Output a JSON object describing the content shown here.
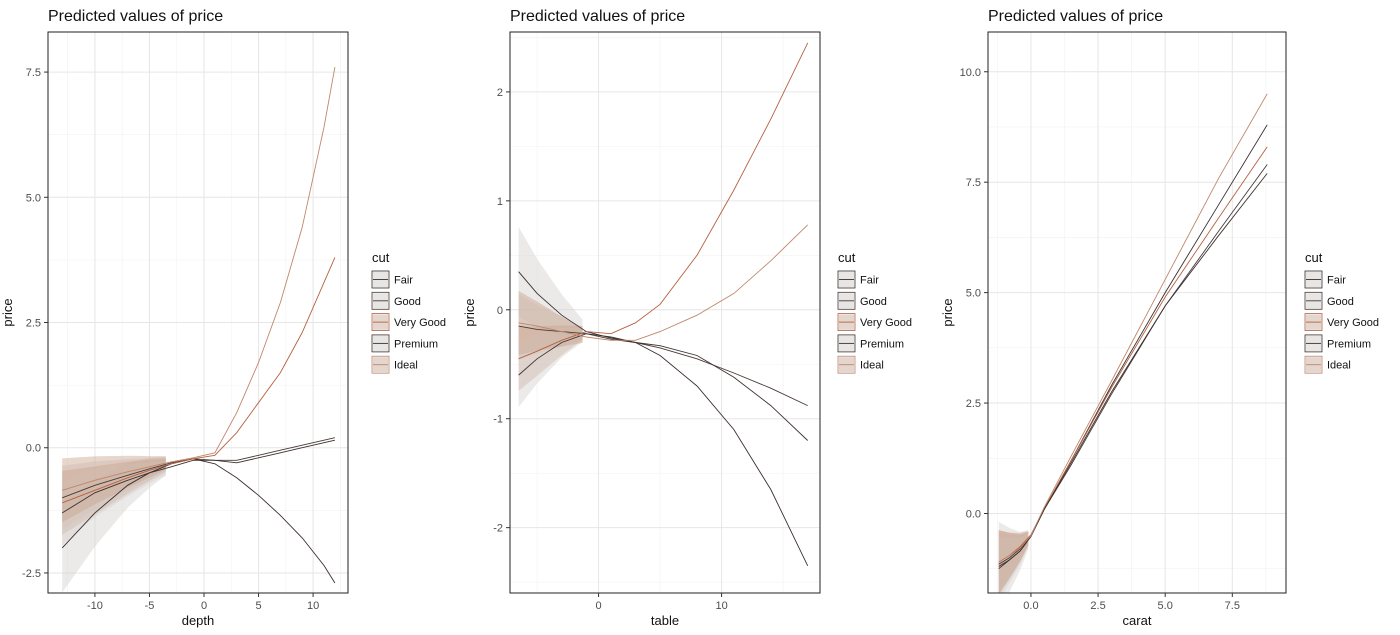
{
  "colors": {
    "Fair": "#3b2f2f",
    "Good": "#4a3a36",
    "Very Good": "#b5613e",
    "Premium": "#3d3232",
    "Ideal": "#c0866a",
    "band": "#c9a48d",
    "band_grey": "#d4d0cf"
  },
  "chart_data": [
    {
      "type": "line",
      "title": "Predicted values of price",
      "xlabel": "depth",
      "ylabel": "price",
      "xlim": [
        -14.3,
        13.2
      ],
      "ylim": [
        -2.9,
        8.3
      ],
      "xticks": [
        -10,
        -5,
        0,
        5,
        10
      ],
      "xtick_labels": [
        "-10",
        "-5",
        "0",
        "5",
        "10"
      ],
      "yticks": [
        -2.5,
        0,
        2.5,
        5,
        7.5
      ],
      "ytick_labels": [
        "-2.5",
        "0.0",
        "2.5",
        "5.0",
        "7.5"
      ],
      "legend_title": "cut",
      "legend_position": "right",
      "band_x_range": [
        -13,
        -3.5
      ],
      "series": [
        {
          "name": "Fair",
          "x": [
            -13,
            -10,
            -7,
            -5,
            -3,
            -1,
            1,
            3,
            5,
            7,
            9,
            11,
            12
          ],
          "y": [
            -2.0,
            -1.3,
            -0.75,
            -0.5,
            -0.32,
            -0.22,
            -0.32,
            -0.6,
            -0.95,
            -1.35,
            -1.8,
            -2.35,
            -2.7
          ]
        },
        {
          "name": "Good",
          "x": [
            -13,
            -10,
            -7,
            -5,
            -3,
            -1,
            1,
            3,
            5,
            7,
            9,
            11,
            12
          ],
          "y": [
            -1.0,
            -0.75,
            -0.55,
            -0.42,
            -0.3,
            -0.22,
            -0.25,
            -0.25,
            -0.15,
            -0.05,
            0.05,
            0.15,
            0.2
          ]
        },
        {
          "name": "Very Good",
          "x": [
            -13,
            -10,
            -7,
            -5,
            -3,
            -1,
            1,
            3,
            5,
            7,
            9,
            11,
            12
          ],
          "y": [
            -1.1,
            -0.85,
            -0.6,
            -0.45,
            -0.32,
            -0.22,
            -0.15,
            0.3,
            0.9,
            1.5,
            2.3,
            3.3,
            3.8
          ]
        },
        {
          "name": "Premium",
          "x": [
            -13,
            -10,
            -7,
            -5,
            -3,
            -1,
            1,
            3,
            5,
            7,
            9,
            11,
            12
          ],
          "y": [
            -1.3,
            -0.9,
            -0.65,
            -0.5,
            -0.38,
            -0.25,
            -0.25,
            -0.3,
            -0.2,
            -0.1,
            0.0,
            0.1,
            0.15
          ]
        },
        {
          "name": "Ideal",
          "x": [
            -13,
            -10,
            -7,
            -5,
            -3,
            -1,
            1,
            3,
            5,
            7,
            9,
            11,
            12
          ],
          "y": [
            -0.85,
            -0.65,
            -0.48,
            -0.38,
            -0.28,
            -0.2,
            -0.1,
            0.7,
            1.7,
            2.9,
            4.4,
            6.4,
            7.6
          ]
        }
      ]
    },
    {
      "type": "line",
      "title": "Predicted values of price",
      "xlabel": "table",
      "ylabel": "price",
      "xlim": [
        -7.2,
        18.0
      ],
      "ylim": [
        -2.6,
        2.55
      ],
      "xticks": [
        0,
        10
      ],
      "xtick_labels": [
        "0",
        "10"
      ],
      "yticks": [
        -2,
        -1,
        0,
        1,
        2
      ],
      "ytick_labels": [
        "-2",
        "-1",
        "0",
        "1",
        "2"
      ],
      "legend_title": "cut",
      "legend_position": "right",
      "band_x_range": [
        -6.5,
        -1.3
      ],
      "series": [
        {
          "name": "Fair",
          "x": [
            -6.5,
            -5,
            -3,
            -1,
            1,
            3,
            5,
            8,
            11,
            14,
            17
          ],
          "y": [
            0.35,
            0.15,
            -0.05,
            -0.2,
            -0.26,
            -0.3,
            -0.42,
            -0.7,
            -1.1,
            -1.65,
            -2.35
          ]
        },
        {
          "name": "Good",
          "x": [
            -6.5,
            -5,
            -3,
            -1,
            1,
            3,
            5,
            8,
            11,
            14,
            17
          ],
          "y": [
            -0.15,
            -0.18,
            -0.2,
            -0.22,
            -0.27,
            -0.3,
            -0.35,
            -0.45,
            -0.58,
            -0.72,
            -0.88
          ]
        },
        {
          "name": "Very Good",
          "x": [
            -6.5,
            -5,
            -3,
            -1,
            1,
            3,
            5,
            8,
            11,
            14,
            17
          ],
          "y": [
            -0.45,
            -0.38,
            -0.28,
            -0.2,
            -0.22,
            -0.12,
            0.05,
            0.5,
            1.1,
            1.75,
            2.45
          ]
        },
        {
          "name": "Premium",
          "x": [
            -6.5,
            -5,
            -3,
            -1,
            1,
            3,
            5,
            8,
            11,
            14,
            17
          ],
          "y": [
            -0.6,
            -0.45,
            -0.3,
            -0.22,
            -0.25,
            -0.3,
            -0.33,
            -0.42,
            -0.62,
            -0.88,
            -1.2
          ]
        },
        {
          "name": "Ideal",
          "x": [
            -6.5,
            -5,
            -3,
            -1,
            1,
            3,
            5,
            8,
            11,
            14,
            17
          ],
          "y": [
            -0.12,
            -0.15,
            -0.2,
            -0.25,
            -0.28,
            -0.28,
            -0.2,
            -0.05,
            0.15,
            0.45,
            0.78
          ]
        }
      ]
    },
    {
      "type": "line",
      "title": "Predicted values of price",
      "xlabel": "carat",
      "ylabel": "price",
      "xlim": [
        -1.6,
        9.5
      ],
      "ylim": [
        -1.8,
        10.9
      ],
      "xticks": [
        0,
        2.5,
        5,
        7.5
      ],
      "xtick_labels": [
        "0.0",
        "2.5",
        "5.0",
        "7.5"
      ],
      "yticks": [
        0,
        2.5,
        5,
        7.5,
        10
      ],
      "ytick_labels": [
        "0.0",
        "2.5",
        "5.0",
        "7.5",
        "10.0"
      ],
      "legend_title": "cut",
      "legend_position": "right",
      "band_x_range": [
        -1.2,
        -0.1
      ],
      "series": [
        {
          "name": "Fair",
          "x": [
            -1.2,
            -0.8,
            -0.4,
            0,
            0.5,
            1.5,
            3,
            5,
            7,
            8.8
          ],
          "y": [
            -1.2,
            -1.05,
            -0.85,
            -0.5,
            0.1,
            1.2,
            2.9,
            5.0,
            7.0,
            8.8
          ]
        },
        {
          "name": "Good",
          "x": [
            -1.2,
            -0.8,
            -0.4,
            0,
            0.5,
            1.5,
            3,
            5,
            7,
            8.8
          ],
          "y": [
            -1.15,
            -1.0,
            -0.8,
            -0.5,
            0.1,
            1.1,
            2.7,
            4.7,
            6.4,
            7.9
          ]
        },
        {
          "name": "Very Good",
          "x": [
            -1.2,
            -0.8,
            -0.4,
            0,
            0.5,
            1.5,
            3,
            5,
            7,
            8.8
          ],
          "y": [
            -1.1,
            -0.95,
            -0.75,
            -0.48,
            0.12,
            1.2,
            2.85,
            4.9,
            6.7,
            8.3
          ]
        },
        {
          "name": "Premium",
          "x": [
            -1.2,
            -0.8,
            -0.4,
            0,
            0.5,
            1.5,
            3,
            5,
            7,
            8.8
          ],
          "y": [
            -1.25,
            -1.05,
            -0.85,
            -0.52,
            0.1,
            1.15,
            2.75,
            4.7,
            6.3,
            7.7
          ]
        },
        {
          "name": "Ideal",
          "x": [
            -1.2,
            -0.8,
            -0.4,
            0,
            0.5,
            1.5,
            3,
            5,
            7,
            8.8
          ],
          "y": [
            -1.1,
            -0.95,
            -0.78,
            -0.5,
            0.15,
            1.3,
            3.0,
            5.3,
            7.6,
            9.5
          ]
        }
      ]
    }
  ]
}
